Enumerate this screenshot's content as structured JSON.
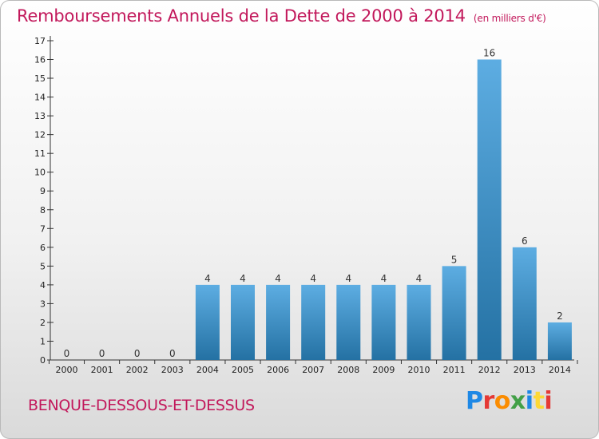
{
  "header": {
    "title": "Remboursements Annuels de la Dette de 2000 à 2014",
    "unit": "(en milliers d'€)"
  },
  "footer": {
    "town": "BENQUE-DESSOUS-ET-DESSUS",
    "logo": "Proxiti"
  },
  "colors": {
    "title": "#c2185b",
    "bar_light": "#5dade2",
    "bar_dark": "#2471a3",
    "axis": "#333333",
    "logo_letters": [
      "#1e88e5",
      "#e53935",
      "#fb8c00",
      "#43a047",
      "#1e88e5",
      "#fdd835",
      "#e53935"
    ]
  },
  "chart_data": {
    "type": "bar",
    "title": "Remboursements Annuels de la Dette de 2000 à 2014",
    "categories": [
      "2000",
      "2001",
      "2002",
      "2003",
      "2004",
      "2005",
      "2006",
      "2007",
      "2008",
      "2009",
      "2010",
      "2011",
      "2012",
      "2013",
      "2014"
    ],
    "values": [
      0,
      0,
      0,
      0,
      4,
      4,
      4,
      4,
      4,
      4,
      4,
      5,
      16,
      6,
      2
    ],
    "yticks": [
      0,
      1,
      2,
      3,
      4,
      5,
      6,
      7,
      8,
      9,
      10,
      11,
      12,
      13,
      14,
      15,
      16,
      17
    ],
    "ylim": [
      0,
      17
    ],
    "grid": false,
    "xlabel": "",
    "ylabel": ""
  }
}
